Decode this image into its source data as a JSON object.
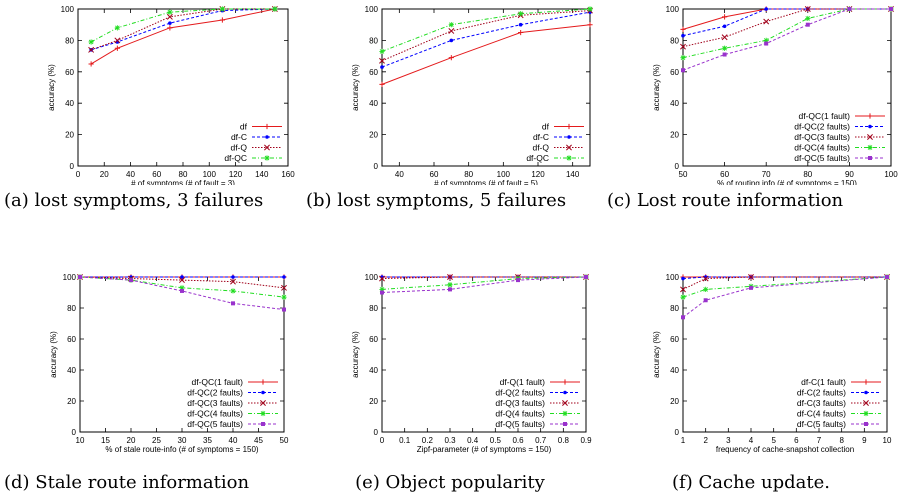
{
  "chart_data": [
    {
      "type": "line",
      "caption": "(a) lost symptoms, 3 failures",
      "xlabel": "# of symptoms (# of fault = 3)",
      "ylabel": "accuracy (%)",
      "xlim": [
        0,
        160
      ],
      "ylim": [
        0,
        100
      ],
      "xticks": [
        "0",
        "20",
        "40",
        "60",
        "80",
        "100",
        "120",
        "140",
        "160"
      ],
      "yticks": [
        "0",
        "20",
        "40",
        "60",
        "80",
        "100"
      ],
      "legend_position": "bottom-right",
      "x": [
        10,
        30,
        70,
        110,
        150
      ],
      "series": [
        {
          "name": "df",
          "color": "#e41a1c",
          "dash": "",
          "marker": "plus",
          "values": [
            65,
            75,
            88,
            93,
            100
          ]
        },
        {
          "name": "df-C",
          "color": "#0000ff",
          "dash": "3,2",
          "marker": "dot",
          "values": [
            74,
            79,
            91,
            99,
            100
          ]
        },
        {
          "name": "df-Q",
          "color": "#a0001a",
          "dash": "1.5,1.5",
          "marker": "cross",
          "values": [
            74,
            80,
            95,
            100,
            100
          ]
        },
        {
          "name": "df-QC",
          "color": "#22dd22",
          "dash": "4,2,1,2",
          "marker": "star",
          "values": [
            79,
            88,
            98,
            100,
            100
          ]
        }
      ]
    },
    {
      "type": "line",
      "caption": "(b) lost symptoms, 5 failures",
      "xlabel": "# of symptoms (# of fault = 5)",
      "ylabel": "accuracy (%)",
      "xlim": [
        30,
        150
      ],
      "ylim": [
        0,
        100
      ],
      "xticks": [
        "40",
        "60",
        "80",
        "100",
        "120",
        "140"
      ],
      "yticks": [
        "0",
        "20",
        "40",
        "60",
        "80",
        "100"
      ],
      "legend_position": "bottom-right",
      "x": [
        30,
        70,
        110,
        150
      ],
      "series": [
        {
          "name": "df",
          "color": "#e41a1c",
          "dash": "",
          "marker": "plus",
          "values": [
            52,
            69,
            85,
            90
          ]
        },
        {
          "name": "df-C",
          "color": "#0000ff",
          "dash": "3,2",
          "marker": "dot",
          "values": [
            63,
            80,
            90,
            98
          ]
        },
        {
          "name": "df-Q",
          "color": "#a0001a",
          "dash": "1.5,1.5",
          "marker": "cross",
          "values": [
            67,
            86,
            96,
            99
          ]
        },
        {
          "name": "df-QC",
          "color": "#22dd22",
          "dash": "4,2,1,2",
          "marker": "star",
          "values": [
            73,
            90,
            97,
            100
          ]
        }
      ]
    },
    {
      "type": "line",
      "caption": "(c) Lost route information",
      "xlabel": "% of routing info (# of symptoms = 150)",
      "ylabel": "accuracy (%)",
      "xlim": [
        50,
        100
      ],
      "ylim": [
        0,
        100
      ],
      "xticks": [
        "50",
        "60",
        "70",
        "80",
        "90",
        "100"
      ],
      "yticks": [
        "0",
        "20",
        "40",
        "60",
        "80",
        "100"
      ],
      "legend_position": "bottom-right",
      "x": [
        50,
        60,
        70,
        80,
        90,
        100
      ],
      "series": [
        {
          "name": "df-QC(1 fault)",
          "color": "#e41a1c",
          "dash": "",
          "marker": "plus",
          "values": [
            87,
            95,
            100,
            100,
            100,
            100
          ]
        },
        {
          "name": "df-QC(2 faults)",
          "color": "#0000ff",
          "dash": "3,2",
          "marker": "dot",
          "values": [
            83,
            89,
            100,
            100,
            100,
            100
          ]
        },
        {
          "name": "df-QC(3 faults)",
          "color": "#a0001a",
          "dash": "1.5,1.5",
          "marker": "cross",
          "values": [
            76,
            82,
            92,
            100,
            100,
            100
          ]
        },
        {
          "name": "df-QC(4 faults)",
          "color": "#22dd22",
          "dash": "4,2,1,2",
          "marker": "star",
          "values": [
            69,
            75,
            80,
            94,
            100,
            100
          ]
        },
        {
          "name": "df-QC(5 faults)",
          "color": "#9932cc",
          "dash": "3,2",
          "marker": "square",
          "values": [
            61,
            71,
            78,
            90,
            100,
            100
          ]
        }
      ]
    },
    {
      "type": "line",
      "caption": "(d) Stale route information",
      "xlabel": "% of stale route-info (# of symptoms = 150)",
      "ylabel": "accuracy (%)",
      "xlim": [
        10,
        50
      ],
      "ylim": [
        0,
        100
      ],
      "xticks": [
        "10",
        "15",
        "20",
        "25",
        "30",
        "35",
        "40",
        "45",
        "50"
      ],
      "yticks": [
        "0",
        "20",
        "40",
        "60",
        "80",
        "100"
      ],
      "legend_position": "bottom-right",
      "x": [
        10,
        20,
        30,
        40,
        50
      ],
      "series": [
        {
          "name": "df-QC(1 fault)",
          "color": "#e41a1c",
          "dash": "",
          "marker": "plus",
          "values": [
            100,
            100,
            100,
            100,
            100
          ]
        },
        {
          "name": "df-QC(2 faults)",
          "color": "#0000ff",
          "dash": "3,2",
          "marker": "dot",
          "values": [
            100,
            100,
            100,
            100,
            100
          ]
        },
        {
          "name": "df-QC(3 faults)",
          "color": "#a0001a",
          "dash": "1.5,1.5",
          "marker": "cross",
          "values": [
            100,
            99,
            98,
            97,
            93
          ]
        },
        {
          "name": "df-QC(4 faults)",
          "color": "#22dd22",
          "dash": "4,2,1,2",
          "marker": "star",
          "values": [
            100,
            98,
            93,
            91,
            87
          ]
        },
        {
          "name": "df-QC(5 faults)",
          "color": "#9932cc",
          "dash": "3,2",
          "marker": "square",
          "values": [
            100,
            98,
            91,
            83,
            79
          ]
        }
      ]
    },
    {
      "type": "line",
      "caption": "(e) Object popularity",
      "xlabel": "Zipf-parameter (# of symptoms = 150)",
      "ylabel": "accuracy (%)",
      "xlim": [
        0,
        0.9
      ],
      "ylim": [
        0,
        100
      ],
      "xticks": [
        "0",
        "0.1",
        "0.2",
        "0.3",
        "0.4",
        "0.5",
        "0.6",
        "0.7",
        "0.8",
        "0.9"
      ],
      "yticks": [
        "0",
        "20",
        "40",
        "60",
        "80",
        "100"
      ],
      "legend_position": "bottom-right",
      "x": [
        0,
        0.3,
        0.6,
        0.9
      ],
      "series": [
        {
          "name": "df-Q(1 fault)",
          "color": "#e41a1c",
          "dash": "",
          "marker": "plus",
          "values": [
            100,
            100,
            100,
            100
          ]
        },
        {
          "name": "df-Q(2 faults)",
          "color": "#0000ff",
          "dash": "3,2",
          "marker": "dot",
          "values": [
            100,
            100,
            100,
            100
          ]
        },
        {
          "name": "df-Q(3 faults)",
          "color": "#a0001a",
          "dash": "1.5,1.5",
          "marker": "cross",
          "values": [
            99,
            100,
            100,
            100
          ]
        },
        {
          "name": "df-Q(4 faults)",
          "color": "#22dd22",
          "dash": "4,2,1,2",
          "marker": "star",
          "values": [
            92,
            95,
            99,
            100
          ]
        },
        {
          "name": "df-Q(5 faults)",
          "color": "#9932cc",
          "dash": "3,2",
          "marker": "square",
          "values": [
            90,
            92,
            98,
            100
          ]
        }
      ]
    },
    {
      "type": "line",
      "caption": "(f) Cache update.",
      "xlabel": "frequency of cache-snapshot collection",
      "ylabel": "accuracy (%)",
      "xlim": [
        1,
        10
      ],
      "ylim": [
        0,
        100
      ],
      "xticks": [
        "1",
        "2",
        "3",
        "4",
        "5",
        "6",
        "7",
        "8",
        "9",
        "10"
      ],
      "yticks": [
        "0",
        "20",
        "40",
        "60",
        "80",
        "100"
      ],
      "legend_position": "bottom-right",
      "x": [
        1,
        2,
        4,
        10
      ],
      "series": [
        {
          "name": "df-C(1 fault)",
          "color": "#e41a1c",
          "dash": "",
          "marker": "plus",
          "values": [
            100,
            100,
            100,
            100
          ]
        },
        {
          "name": "df-C(2 faults)",
          "color": "#0000ff",
          "dash": "3,2",
          "marker": "dot",
          "values": [
            99,
            100,
            100,
            100
          ]
        },
        {
          "name": "df-C(3 faults)",
          "color": "#a0001a",
          "dash": "1.5,1.5",
          "marker": "cross",
          "values": [
            92,
            99,
            100,
            100
          ]
        },
        {
          "name": "df-C(4 faults)",
          "color": "#22dd22",
          "dash": "4,2,1,2",
          "marker": "star",
          "values": [
            87,
            92,
            94,
            100
          ]
        },
        {
          "name": "df-C(5 faults)",
          "color": "#9932cc",
          "dash": "3,2",
          "marker": "square",
          "values": [
            74,
            85,
            93,
            100
          ]
        }
      ]
    }
  ]
}
